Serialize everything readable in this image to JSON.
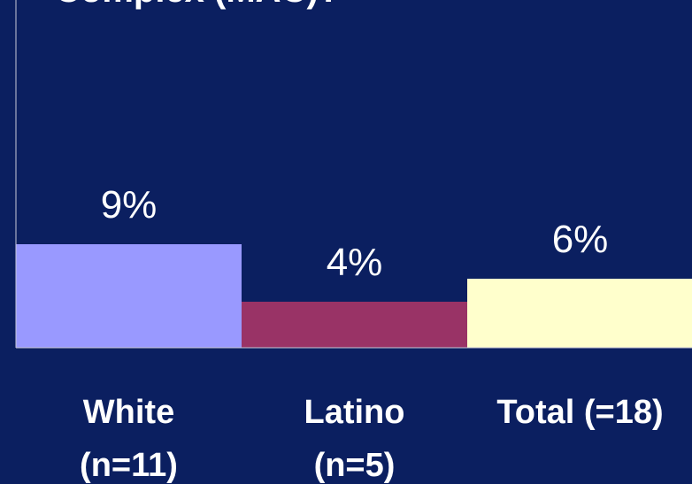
{
  "chart_data": {
    "type": "bar",
    "title": "Complex (MAC)?",
    "categories": [
      "White\n(n=11)",
      "Latino\n(n=5)",
      "Total (=18)"
    ],
    "values": [
      9,
      4,
      6
    ],
    "value_labels": [
      "9%",
      "4%",
      "6%"
    ],
    "colors": [
      "#9999ff",
      "#993366",
      "#ffffcc"
    ],
    "ylim": [
      0,
      30
    ]
  }
}
